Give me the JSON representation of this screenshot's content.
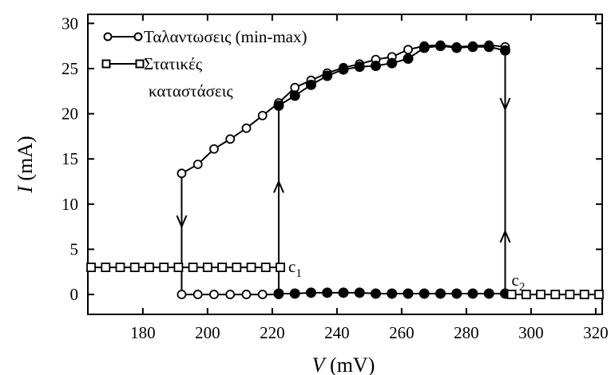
{
  "chart_data": {
    "type": "line",
    "xlabel": "V (mV)",
    "xlabel_parts": {
      "var": "V",
      "unit": " (mV)"
    },
    "ylabel": "I (mA)",
    "ylabel_parts": {
      "var": "I",
      "unit": " (mA)"
    },
    "xlim": [
      163,
      322
    ],
    "ylim": [
      -2.2,
      31
    ],
    "xticks": [
      180,
      200,
      220,
      240,
      260,
      280,
      300,
      320
    ],
    "yticks": [
      0,
      5,
      10,
      15,
      20,
      25,
      30
    ],
    "legend_position": "top-left",
    "legend": {
      "oscillations": "Ταλαντωσεις (min-max)",
      "static_line1": "Στατικές",
      "static_line2": "καταστάσεις"
    },
    "annotations": [
      {
        "id": "c1",
        "text": "c",
        "sub": "1",
        "x": 223,
        "y": 3.0
      },
      {
        "id": "c2",
        "text": "c",
        "sub": "2",
        "x": 292,
        "y": 1.5
      }
    ],
    "series": [
      {
        "name": "Ταλαντωσεις (min-max) max",
        "marker": "open-circle",
        "x": [
          192,
          197,
          202,
          207,
          212,
          217,
          222,
          227,
          232,
          237,
          242,
          247,
          252,
          257,
          262,
          267,
          272,
          277,
          282,
          287,
          292
        ],
        "y": [
          13.4,
          14.4,
          16.1,
          17.2,
          18.4,
          19.8,
          21.2,
          22.9,
          23.7,
          24.5,
          25.1,
          25.5,
          26.0,
          26.3,
          27.1,
          27.5,
          27.6,
          27.4,
          27.5,
          27.6,
          27.4
        ]
      },
      {
        "name": "Ταλαντωσεις (min-max) max-branch",
        "marker": "filled-circle",
        "x": [
          222,
          227,
          232,
          237,
          242,
          247,
          252,
          257,
          262,
          267,
          272,
          277,
          282,
          287,
          292
        ],
        "y": [
          20.9,
          22.0,
          23.2,
          24.2,
          24.9,
          25.2,
          25.3,
          25.6,
          26.1,
          27.3,
          27.5,
          27.3,
          27.4,
          27.4,
          27.0
        ]
      },
      {
        "name": "Ταλαντωσεις (min-max) min",
        "marker": "open-circle",
        "x": [
          192,
          197,
          202,
          207,
          212,
          217,
          222
        ],
        "y": [
          0,
          0,
          0,
          0,
          0,
          0,
          0
        ]
      },
      {
        "name": "Ταλαντωσεις (min-max) min-branch",
        "marker": "filled-circle",
        "x": [
          222,
          227,
          232,
          237,
          242,
          247,
          252,
          257,
          262,
          267,
          272,
          277,
          282,
          287,
          292
        ],
        "y": [
          0.1,
          0.1,
          0.2,
          0.2,
          0.2,
          0.2,
          0.1,
          0.1,
          0.1,
          0.1,
          0.1,
          0.1,
          0.1,
          0.1,
          0.1
        ]
      },
      {
        "name": "Στατικές καταστάσεις low-V",
        "marker": "open-square",
        "x": [
          164,
          168.5,
          173,
          177.5,
          182,
          186.5,
          191,
          195.5,
          200,
          204.5,
          209,
          213.5,
          218,
          222.5
        ],
        "y": [
          3,
          3,
          3,
          3,
          3,
          3,
          3,
          3,
          3,
          3,
          3,
          3,
          3,
          3
        ]
      },
      {
        "name": "Στατικές καταστάσεις high-V",
        "marker": "open-square",
        "x": [
          294,
          298.5,
          303,
          307.5,
          312,
          316.5,
          321
        ],
        "y": [
          0,
          0,
          0,
          0,
          0,
          0,
          0
        ]
      }
    ],
    "vertical_transitions": [
      {
        "x": 192,
        "from": 13.4,
        "to": 0,
        "arrow_at": 7.5,
        "direction": "down"
      },
      {
        "x": 222,
        "from": 0,
        "to": 21.0,
        "arrow_at": 12.5,
        "direction": "up"
      },
      {
        "x": 292,
        "from": 27.2,
        "to": 0,
        "arrow_at": 20.5,
        "direction": "down"
      },
      {
        "x": 292,
        "from": 0,
        "to": 27.2,
        "arrow_at": 7.0,
        "direction": "up"
      }
    ]
  }
}
